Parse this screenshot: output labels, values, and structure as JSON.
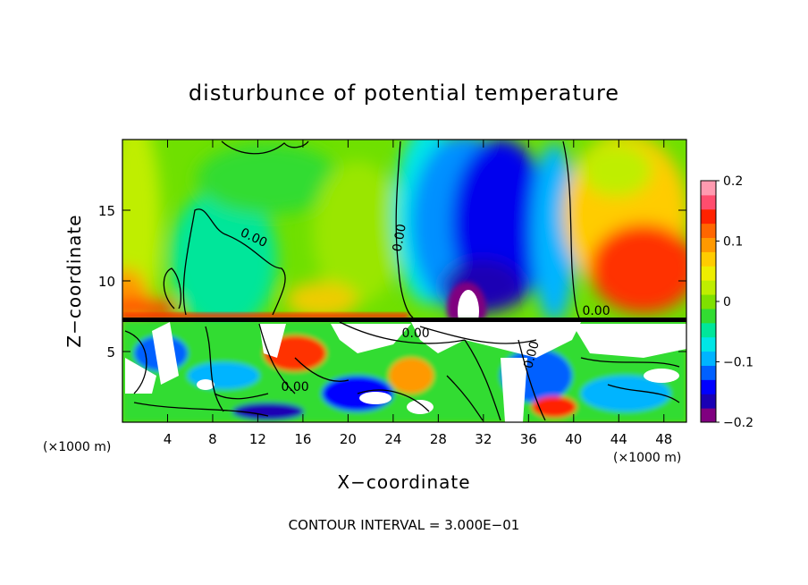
{
  "chart_data": {
    "type": "heatmap",
    "title": "disturbunce of potential temperature",
    "xlabel": "X−coordinate",
    "ylabel": "Z−coordinate",
    "x_unit_left": "(×1000 m)",
    "x_unit_right": "(×1000 m)",
    "footer": "CONTOUR INTERVAL = 3.000E−01",
    "xlim": [
      0,
      50
    ],
    "ylim": [
      0,
      20
    ],
    "x_ticks": [
      4,
      8,
      12,
      16,
      20,
      24,
      28,
      32,
      36,
      40,
      44,
      48
    ],
    "x_tick_labels": [
      "4",
      "8",
      "12",
      "16",
      "20",
      "24",
      "28",
      "32",
      "36",
      "40",
      "44",
      "48"
    ],
    "y_ticks": [
      5,
      10,
      15
    ],
    "y_tick_labels": [
      "5",
      "10",
      "15"
    ],
    "colorbar": {
      "range": [
        -0.2,
        0.2
      ],
      "ticks": [
        0.2,
        0.1,
        0,
        -0.1,
        -0.2
      ],
      "tick_labels": [
        "0.2",
        "0.1",
        "0",
        "−0.1",
        "−0.2"
      ],
      "colors": [
        "#800080",
        "#1a00b4",
        "#0000ff",
        "#0060ff",
        "#00b4ff",
        "#00e6e6",
        "#00e69a",
        "#32dc32",
        "#7fe000",
        "#bfee00",
        "#eeee00",
        "#ffcc00",
        "#ff9900",
        "#ff6600",
        "#ff2200",
        "#ff4d6e",
        "#ff9ab0"
      ]
    },
    "contour_labels": [
      {
        "text": "0.00",
        "x": 11.5,
        "z": 12.8
      },
      {
        "text": "0.00",
        "x": 24.9,
        "z": 13.0
      },
      {
        "text": "0.00",
        "x": 42.0,
        "z": 7.6
      },
      {
        "text": "0.00",
        "x": 26.0,
        "z": 6.0
      },
      {
        "text": "0.00",
        "x": 36.6,
        "z": 4.7
      },
      {
        "text": "0.00",
        "x": 15.3,
        "z": 2.2
      }
    ]
  }
}
